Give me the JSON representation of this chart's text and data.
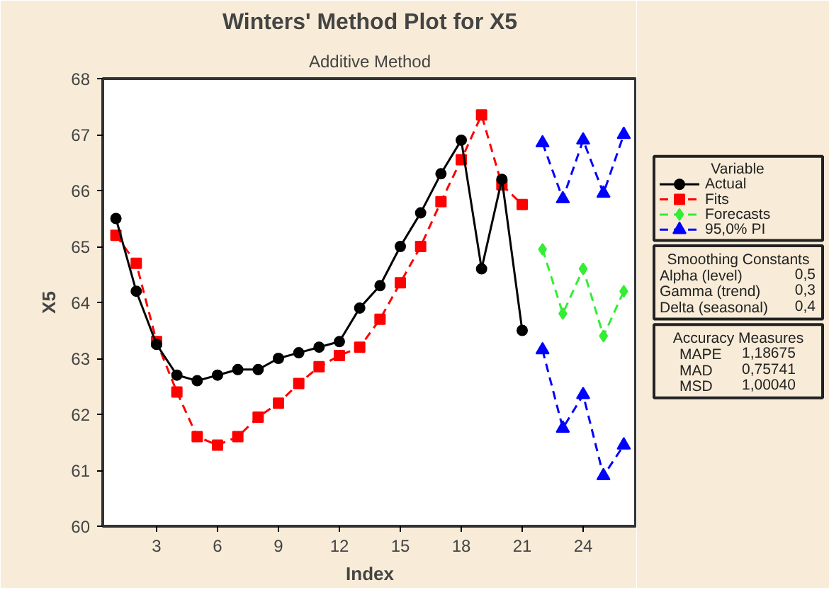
{
  "chart_data": {
    "type": "line",
    "title": "Winters' Method Plot for X5",
    "subtitle": "Additive Method",
    "xlabel": "Index",
    "ylabel": "X5",
    "legend_title": "Variable",
    "legend": "right",
    "xlim": [
      0.35,
      26.65
    ],
    "ylim": [
      60,
      68
    ],
    "xticks": [
      3,
      6,
      9,
      12,
      15,
      18,
      21,
      24
    ],
    "yticks": [
      60,
      61,
      62,
      63,
      64,
      65,
      66,
      67,
      68
    ],
    "grid": false,
    "series": [
      {
        "name": "Actual",
        "color": "#000000",
        "marker": "circle",
        "line_style": "solid",
        "x": [
          1,
          2,
          3,
          4,
          5,
          6,
          7,
          8,
          9,
          10,
          11,
          12,
          13,
          14,
          15,
          16,
          17,
          18,
          19,
          20,
          21
        ],
        "values": [
          65.5,
          64.2,
          63.25,
          62.7,
          62.6,
          62.7,
          62.8,
          62.8,
          63.0,
          63.1,
          63.2,
          63.3,
          63.9,
          64.3,
          65.0,
          65.6,
          66.3,
          66.9,
          64.6,
          66.2,
          63.5
        ]
      },
      {
        "name": "Fits",
        "color": "#ff0000",
        "marker": "square",
        "line_style": "dashed",
        "x": [
          1,
          2,
          3,
          4,
          5,
          6,
          7,
          8,
          9,
          10,
          11,
          12,
          13,
          14,
          15,
          16,
          17,
          18,
          19,
          20,
          21
        ],
        "values": [
          65.2,
          64.7,
          63.3,
          62.4,
          61.6,
          61.45,
          61.6,
          61.95,
          62.2,
          62.55,
          62.85,
          63.05,
          63.2,
          63.7,
          64.35,
          65.0,
          65.8,
          66.55,
          67.35,
          66.1,
          65.75
        ]
      },
      {
        "name": "Forecasts",
        "color": "#33ee33",
        "marker": "diamond",
        "line_style": "dashed",
        "x": [
          22,
          23,
          24,
          25,
          26
        ],
        "values": [
          64.95,
          63.8,
          64.6,
          63.4,
          64.2
        ]
      },
      {
        "name": "95,0% PI",
        "color": "#0000ff",
        "marker": "triangle",
        "line_style": "dashed",
        "x": [
          22,
          23,
          24,
          25,
          26
        ],
        "values": [
          66.85,
          65.85,
          66.9,
          65.95,
          67.0
        ]
      },
      {
        "color": "#0000ff",
        "marker": "triangle",
        "line_style": "dashed",
        "x": [
          22,
          23,
          24,
          25,
          26
        ],
        "values": [
          63.15,
          61.75,
          62.35,
          60.9,
          61.45
        ]
      }
    ],
    "annotations": [
      "Smoothing Constants",
      "Alpha (level) 0,5",
      "Gamma (trend) 0,3",
      "Delta (seasonal) 0,4",
      "Accuracy Measures",
      "MAPE 1,18675",
      "MAD 0,75741",
      "MSD 1,00040"
    ]
  }
}
